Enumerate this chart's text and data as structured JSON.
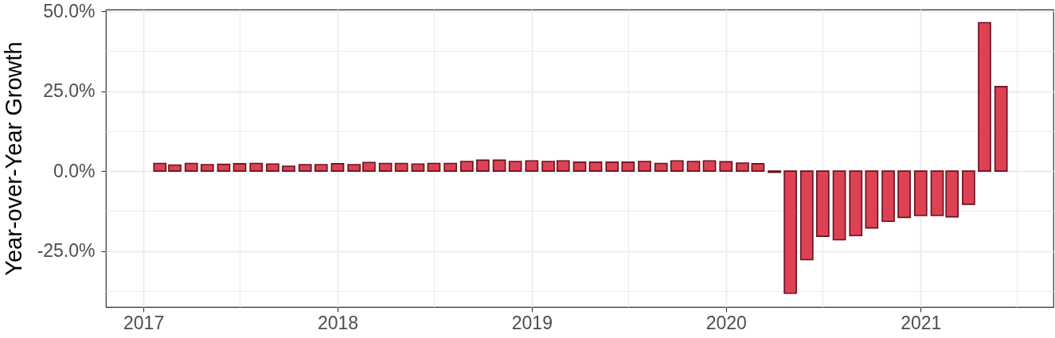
{
  "chart_data": {
    "type": "bar",
    "ylabel": "Year-over-Year Growth",
    "x": [
      "2017-02",
      "2017-03",
      "2017-04",
      "2017-05",
      "2017-06",
      "2017-07",
      "2017-08",
      "2017-09",
      "2017-10",
      "2017-11",
      "2017-12",
      "2018-01",
      "2018-02",
      "2018-03",
      "2018-04",
      "2018-05",
      "2018-06",
      "2018-07",
      "2018-08",
      "2018-09",
      "2018-10",
      "2018-11",
      "2018-12",
      "2019-01",
      "2019-02",
      "2019-03",
      "2019-04",
      "2019-05",
      "2019-06",
      "2019-07",
      "2019-08",
      "2019-09",
      "2019-10",
      "2019-11",
      "2019-12",
      "2020-01",
      "2020-02",
      "2020-03",
      "2020-04",
      "2020-05",
      "2020-06",
      "2020-07",
      "2020-08",
      "2020-09",
      "2020-10",
      "2020-11",
      "2020-12",
      "2021-01",
      "2021-02",
      "2021-03",
      "2021-04",
      "2021-05",
      "2021-06"
    ],
    "values": [
      2.4,
      1.9,
      2.4,
      2.0,
      2.1,
      2.3,
      2.4,
      2.2,
      1.5,
      2.0,
      2.0,
      2.3,
      2.0,
      2.7,
      2.4,
      2.4,
      2.2,
      2.4,
      2.4,
      3.0,
      3.4,
      3.4,
      3.0,
      3.2,
      3.0,
      3.2,
      2.8,
      2.8,
      2.8,
      2.8,
      3.0,
      2.4,
      3.2,
      3.0,
      3.2,
      2.9,
      2.5,
      2.3,
      -0.4,
      -38.2,
      -27.7,
      -20.4,
      -21.5,
      -20.2,
      -17.8,
      -15.7,
      -14.5,
      -13.9,
      -13.9,
      -14.3,
      -10.4,
      46.4,
      26.4
    ],
    "color": "#dc4253",
    "xlim": [
      "2016-10-30",
      "2021-08-31"
    ],
    "xticks": [
      "2017",
      {
        "value": "2017-07",
        "label": null
      },
      "2018",
      {
        "value": "2018-07",
        "label": null
      },
      "2019",
      {
        "value": "2019-07",
        "label": null
      },
      "2020",
      {
        "value": "2020-07",
        "label": null
      },
      "2021",
      {
        "value": "2021-07",
        "label": null
      }
    ],
    "ylim": [
      -42.5,
      50.5
    ],
    "yticks": [
      {
        "value": -37.5,
        "label": null
      },
      {
        "value": -25,
        "label": "-25.0%"
      },
      {
        "value": -12.5,
        "label": null
      },
      {
        "value": 0,
        "label": "0.0%"
      },
      {
        "value": 12.5,
        "label": null
      },
      {
        "value": 25,
        "label": "25.0%"
      },
      {
        "value": 37.5,
        "label": null
      },
      {
        "value": 50,
        "label": "50.0%"
      }
    ],
    "grid": true
  }
}
